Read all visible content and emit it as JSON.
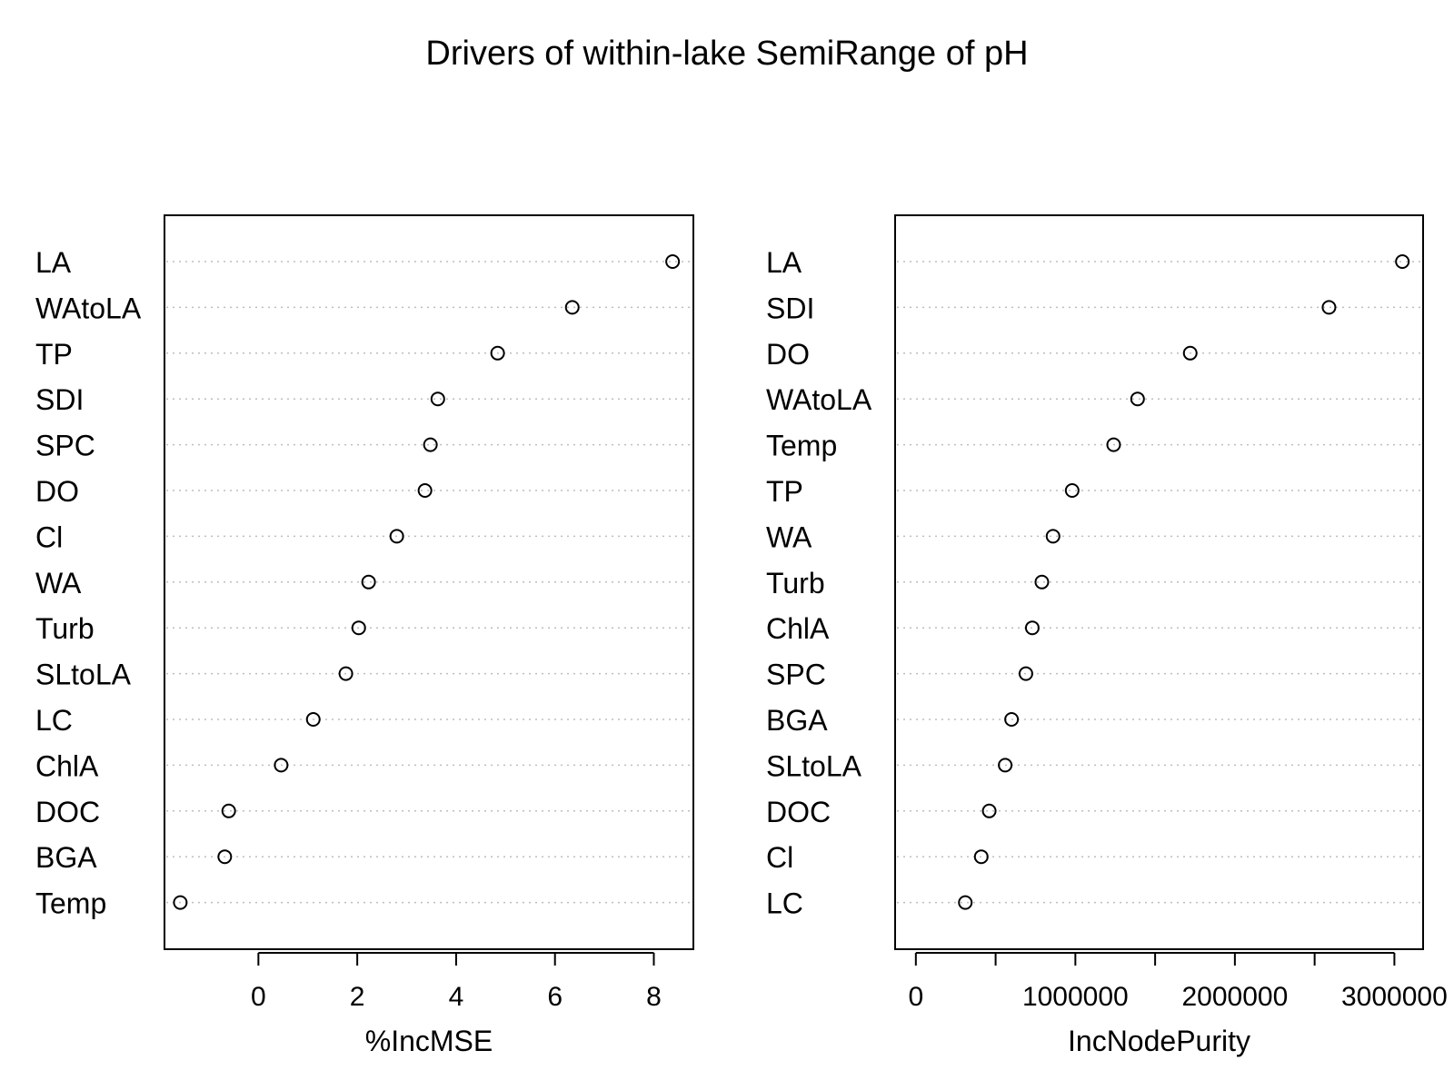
{
  "title": "Drivers of within-lake SemiRange of pH",
  "colors": {
    "ink": "#000000",
    "grid": "#bebebe",
    "background": "#ffffff"
  },
  "chart_data": [
    {
      "type": "scatter",
      "xlabel": "%IncMSE",
      "xlim": [
        -1.9,
        8.8
      ],
      "ticks": [
        0,
        2,
        4,
        6,
        8
      ],
      "tick_labels": [
        "0",
        "2",
        "4",
        "6",
        "8"
      ],
      "grid": "dotted horizontal guide per category",
      "categories": [
        "LA",
        "WAtoLA",
        "TP",
        "SDI",
        "SPC",
        "DO",
        "Cl",
        "WA",
        "Turb",
        "SLtoLA",
        "LC",
        "ChlA",
        "DOC",
        "BGA",
        "Temp"
      ],
      "values": [
        8.38,
        6.35,
        4.84,
        3.63,
        3.48,
        3.37,
        2.8,
        2.23,
        2.03,
        1.77,
        1.11,
        0.46,
        -0.6,
        -0.68,
        -1.58
      ]
    },
    {
      "type": "scatter",
      "xlabel": "IncNodePurity",
      "xlim": [
        -130000,
        3180000
      ],
      "ticks": [
        0,
        500000,
        1000000,
        1500000,
        2000000,
        2500000,
        3000000
      ],
      "tick_labels": [
        "0",
        "",
        "1000000",
        "",
        "2000000",
        "",
        "3000000"
      ],
      "grid": "dotted horizontal guide per category",
      "categories": [
        "LA",
        "SDI",
        "DO",
        "WAtoLA",
        "Temp",
        "TP",
        "WA",
        "Turb",
        "ChlA",
        "SPC",
        "BGA",
        "SLtoLA",
        "DOC",
        "Cl",
        "LC"
      ],
      "values": [
        3050000,
        2590000,
        1720000,
        1390000,
        1240000,
        980000,
        860000,
        790000,
        730000,
        690000,
        600000,
        560000,
        460000,
        410000,
        310000
      ]
    }
  ]
}
